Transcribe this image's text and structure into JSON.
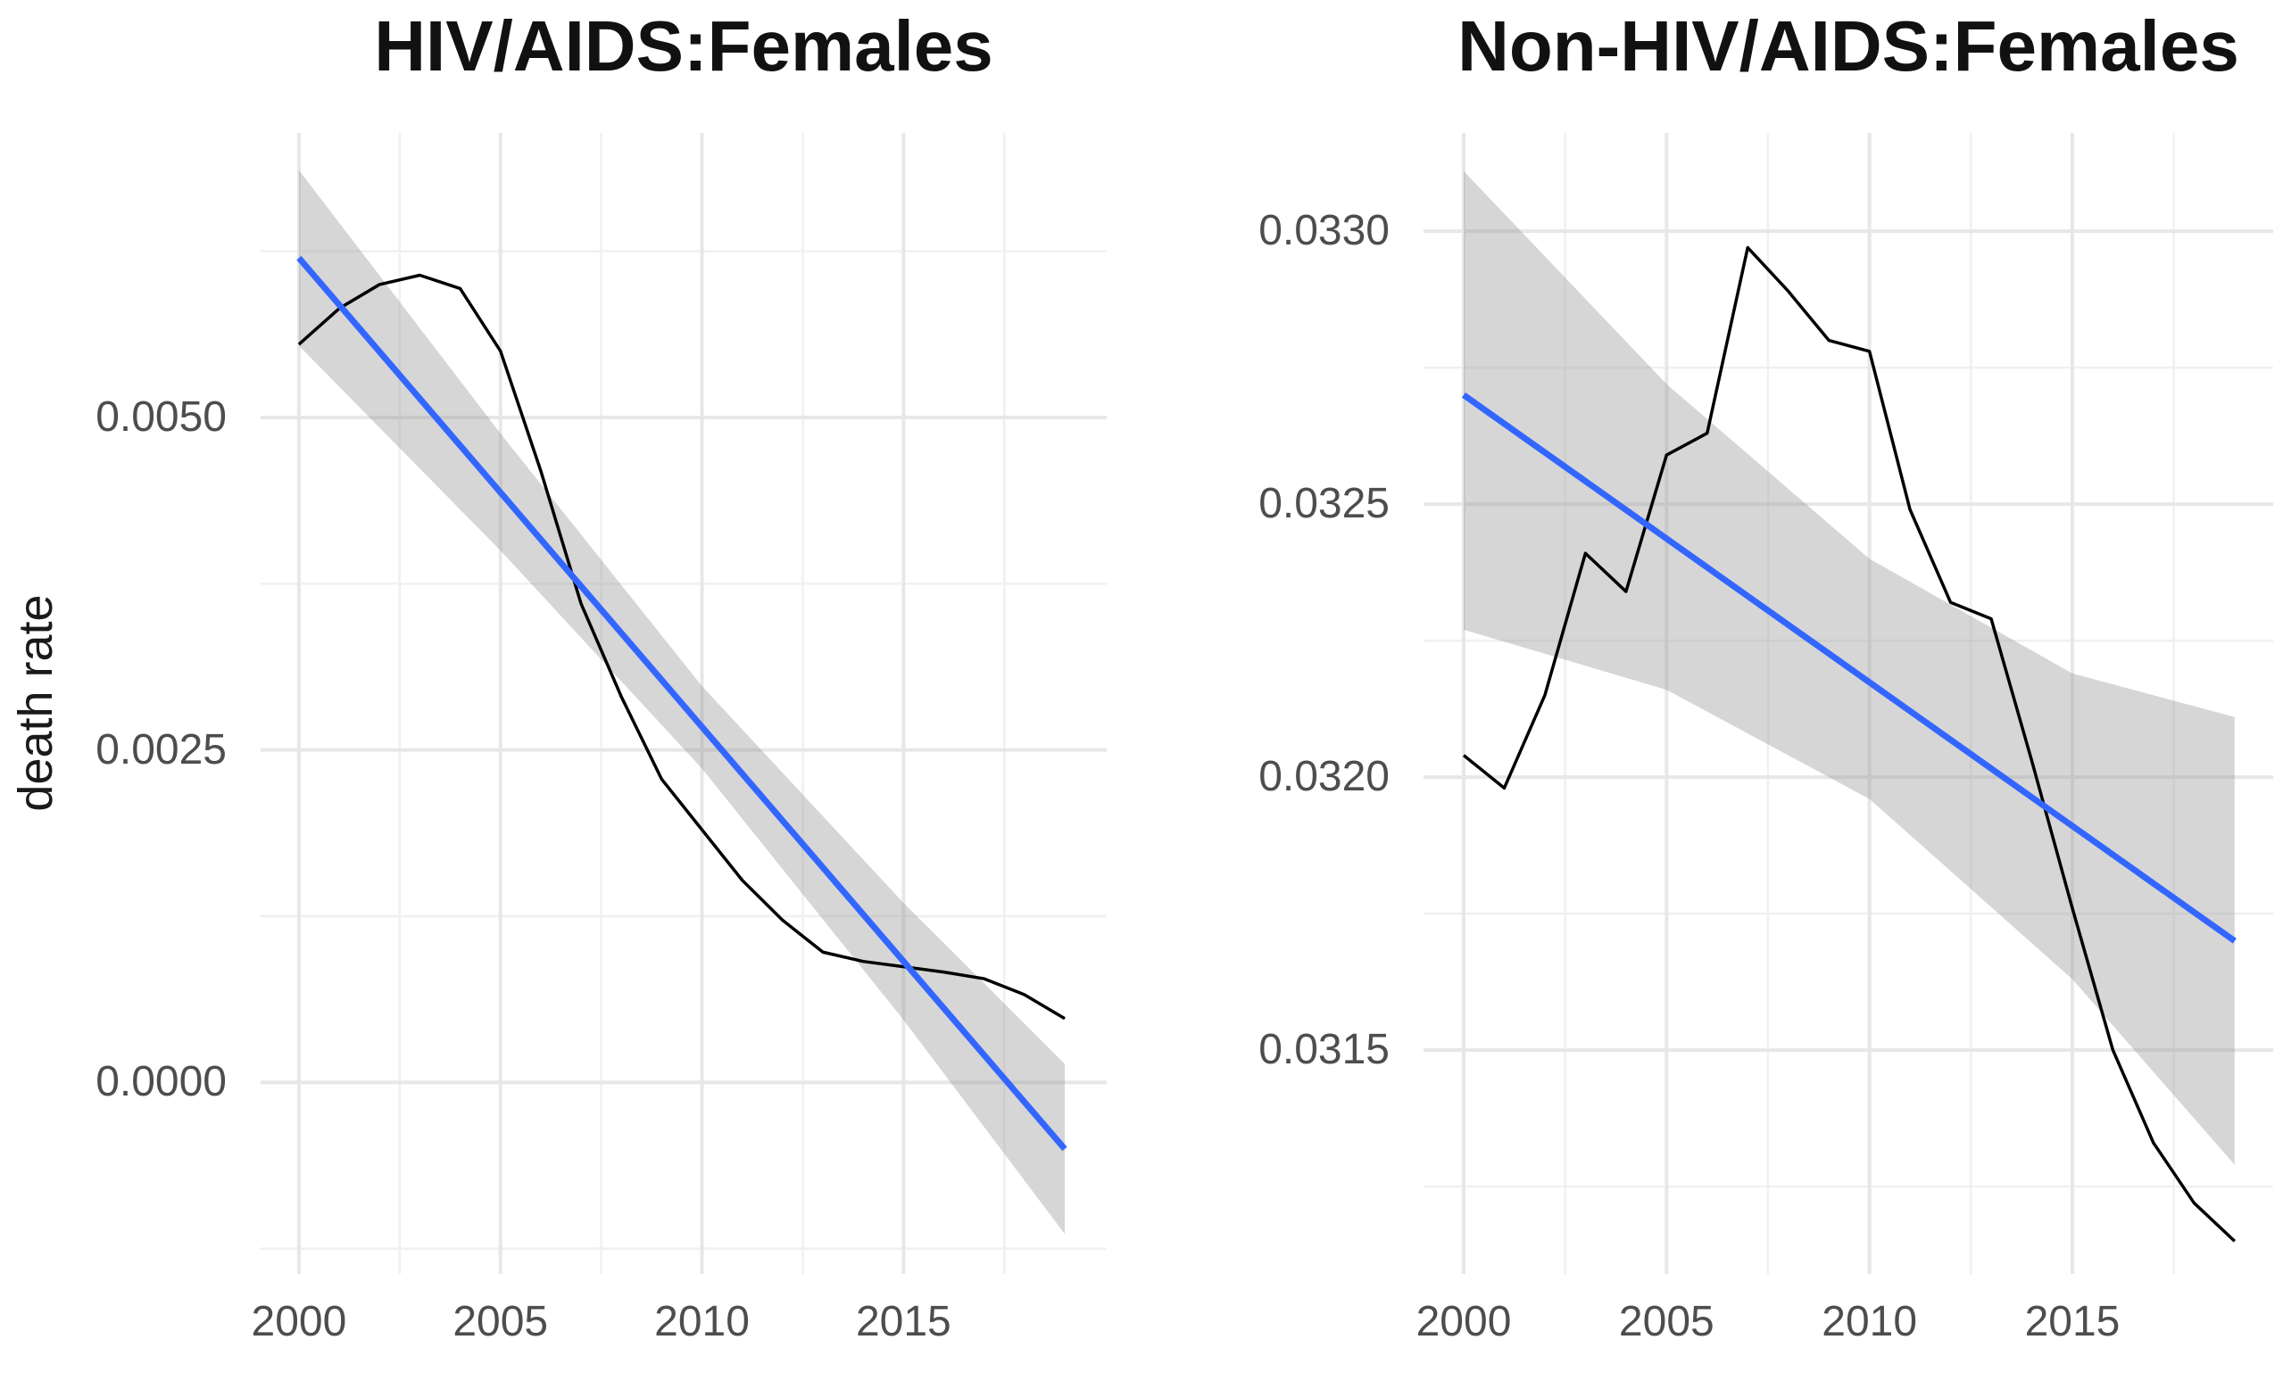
{
  "figure": {
    "background": "#ffffff",
    "description": "Two line charts of female death rates 2000-2019 with observed series, linear trend line and confidence ribbon"
  },
  "colors": {
    "observed_line": "#000000",
    "trend_line": "#3366FF",
    "ribbon": "rgba(153,153,153,0.40)",
    "grid_major": "#e7e7e7",
    "grid_minor": "#f0f0f0",
    "axis_text": "#4d4d4d",
    "title_text": "#111111"
  },
  "chart_data": [
    {
      "type": "line",
      "title": "HIV/AIDS:Females",
      "xlabel": "",
      "ylabel": "death rate",
      "legend_position": "none",
      "grid": true,
      "xlim": [
        1999.05,
        2020.04
      ],
      "ylim": [
        -0.00144,
        0.00714
      ],
      "x_ticks": [
        {
          "value": 2000,
          "label": "2000"
        },
        {
          "value": 2005,
          "label": "2005"
        },
        {
          "value": 2010,
          "label": "2010"
        },
        {
          "value": 2015,
          "label": "2015"
        }
      ],
      "y_ticks": [
        {
          "value": 0.0,
          "label": "0.0000"
        },
        {
          "value": 0.0025,
          "label": "0.0025"
        },
        {
          "value": 0.005,
          "label": "0.0050"
        }
      ],
      "x_minor": [
        2002.5,
        2007.5,
        2012.5,
        2017.5
      ],
      "y_minor": [
        -0.00125,
        0.00125,
        0.00375,
        0.00625
      ],
      "series": [
        {
          "name": "observed death rate",
          "style": "observed",
          "points": [
            [
              2000,
              0.00555
            ],
            [
              2001,
              0.00582
            ],
            [
              2002,
              0.006
            ],
            [
              2003,
              0.00607
            ],
            [
              2004,
              0.00597
            ],
            [
              2005,
              0.0055
            ],
            [
              2006,
              0.0046
            ],
            [
              2007,
              0.0036
            ],
            [
              2008,
              0.0029
            ],
            [
              2009,
              0.00228
            ],
            [
              2010,
              0.0019
            ],
            [
              2011,
              0.00152
            ],
            [
              2012,
              0.00122
            ],
            [
              2013,
              0.00098
            ],
            [
              2014,
              0.00091
            ],
            [
              2015,
              0.00087
            ],
            [
              2016,
              0.00083
            ],
            [
              2017,
              0.00078
            ],
            [
              2018,
              0.00066
            ],
            [
              2019,
              0.00048
            ]
          ]
        },
        {
          "name": "linear trend",
          "style": "trend",
          "points": [
            [
              2000,
              0.0062
            ],
            [
              2019,
              -0.0005
            ]
          ]
        }
      ],
      "ribbon": {
        "name": "confidence band",
        "upper": [
          [
            2000,
            0.00686
          ],
          [
            2005,
            0.00488
          ],
          [
            2010,
            0.00298
          ],
          [
            2015,
            0.00135
          ],
          [
            2019,
            0.00014
          ]
        ],
        "lower": [
          [
            2000,
            0.00554
          ],
          [
            2005,
            0.004
          ],
          [
            2010,
            0.00236
          ],
          [
            2015,
            0.00047
          ],
          [
            2019,
            -0.00114
          ]
        ]
      }
    },
    {
      "type": "line",
      "title": "Non-HIV/AIDS:Females",
      "xlabel": "",
      "ylabel": "",
      "legend_position": "none",
      "grid": true,
      "xlim": [
        1999.01,
        2019.95
      ],
      "ylim": [
        0.03109,
        0.03318
      ],
      "x_ticks": [
        {
          "value": 2000,
          "label": "2000"
        },
        {
          "value": 2005,
          "label": "2005"
        },
        {
          "value": 2010,
          "label": "2010"
        },
        {
          "value": 2015,
          "label": "2015"
        }
      ],
      "y_ticks": [
        {
          "value": 0.0315,
          "label": "0.0315"
        },
        {
          "value": 0.032,
          "label": "0.0320"
        },
        {
          "value": 0.0325,
          "label": "0.0325"
        },
        {
          "value": 0.033,
          "label": "0.0330"
        }
      ],
      "x_minor": [
        2002.5,
        2007.5,
        2012.5,
        2017.5
      ],
      "y_minor": [
        0.03125,
        0.03175,
        0.03225,
        0.03275
      ],
      "series": [
        {
          "name": "observed death rate",
          "style": "observed",
          "points": [
            [
              2000,
              0.03204
            ],
            [
              2001,
              0.03198
            ],
            [
              2002,
              0.03215
            ],
            [
              2003,
              0.03241
            ],
            [
              2004,
              0.03234
            ],
            [
              2005,
              0.03259
            ],
            [
              2006,
              0.03263
            ],
            [
              2007,
              0.03297
            ],
            [
              2008,
              0.03289
            ],
            [
              2009,
              0.0328
            ],
            [
              2010,
              0.03278
            ],
            [
              2011,
              0.03249
            ],
            [
              2012,
              0.03232
            ],
            [
              2013,
              0.03229
            ],
            [
              2014,
              0.03203
            ],
            [
              2015,
              0.03176
            ],
            [
              2016,
              0.0315
            ],
            [
              2017,
              0.03133
            ],
            [
              2018,
              0.03122
            ],
            [
              2019,
              0.03115
            ]
          ]
        },
        {
          "name": "linear trend",
          "style": "trend",
          "points": [
            [
              2000,
              0.0327
            ],
            [
              2019,
              0.0317
            ]
          ]
        }
      ],
      "ribbon": {
        "name": "confidence band",
        "upper": [
          [
            2000,
            0.03311
          ],
          [
            2005,
            0.03272
          ],
          [
            2010,
            0.0324
          ],
          [
            2015,
            0.03219
          ],
          [
            2019,
            0.03211
          ]
        ],
        "lower": [
          [
            2000,
            0.03227
          ],
          [
            2005,
            0.03216
          ],
          [
            2010,
            0.03196
          ],
          [
            2015,
            0.03163
          ],
          [
            2019,
            0.03129
          ]
        ]
      }
    }
  ]
}
